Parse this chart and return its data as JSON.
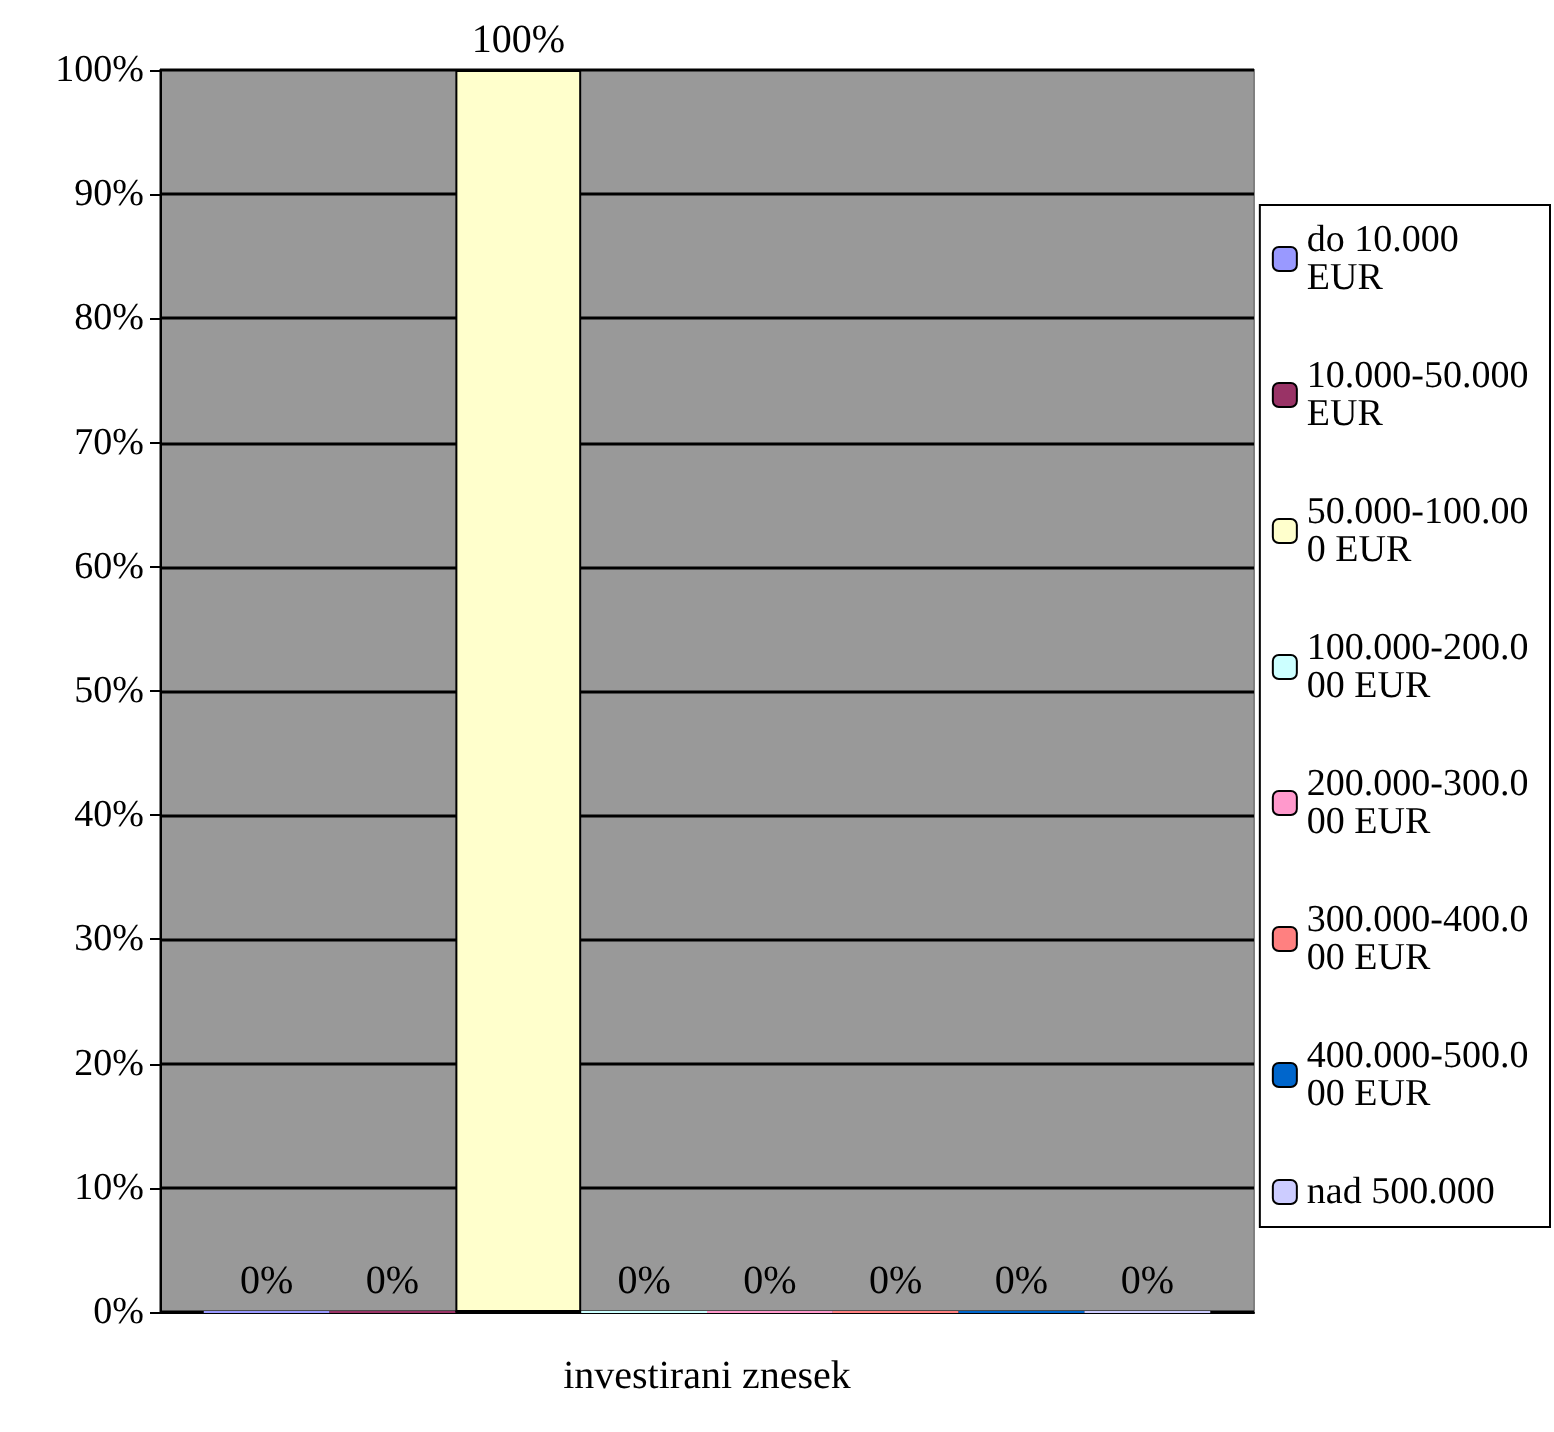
{
  "chart_data": {
    "type": "bar",
    "xlabel": "investirani znesek",
    "categories": [
      null
    ],
    "ylim": [
      0,
      100
    ],
    "yticks": [
      {
        "value": 0,
        "label": "0%"
      },
      {
        "value": 10,
        "label": "10%"
      },
      {
        "value": 20,
        "label": "20%"
      },
      {
        "value": 30,
        "label": "30%"
      },
      {
        "value": 40,
        "label": "40%"
      },
      {
        "value": 50,
        "label": "50%"
      },
      {
        "value": 60,
        "label": "60%"
      },
      {
        "value": 70,
        "label": "70%"
      },
      {
        "value": 80,
        "label": "80%"
      },
      {
        "value": 90,
        "label": "90%"
      },
      {
        "value": 100,
        "label": "100%"
      }
    ],
    "grid": "y",
    "legend": "right",
    "series": [
      {
        "name": "do 10.000 EUR",
        "color": "#9999ff",
        "values": [
          0
        ],
        "value_labels": [
          "0%"
        ]
      },
      {
        "name": "10.000-50.000 EUR",
        "color": "#993366",
        "values": [
          0
        ],
        "value_labels": [
          "0%"
        ]
      },
      {
        "name": "50.000-100.000 EUR",
        "color": "#ffffcc",
        "values": [
          100
        ],
        "value_labels": [
          "100%"
        ]
      },
      {
        "name": "100.000-200.000 EUR",
        "color": "#ccffff",
        "values": [
          0
        ],
        "value_labels": [
          "0%"
        ]
      },
      {
        "name": "200.000-300.000 EUR",
        "color": "#ff99cc",
        "values": [
          0
        ],
        "value_labels": [
          "0%"
        ]
      },
      {
        "name": "300.000-400.000 EUR",
        "color": "#ff8080",
        "values": [
          0
        ],
        "value_labels": [
          "0%"
        ]
      },
      {
        "name": "400.000-500.000 EUR",
        "color": "#0066cc",
        "values": [
          0
        ],
        "value_labels": [
          "0%"
        ]
      },
      {
        "name": "nad 500.000",
        "color": "#ccccff",
        "values": [
          0
        ],
        "value_labels": [
          "0%"
        ]
      }
    ]
  }
}
